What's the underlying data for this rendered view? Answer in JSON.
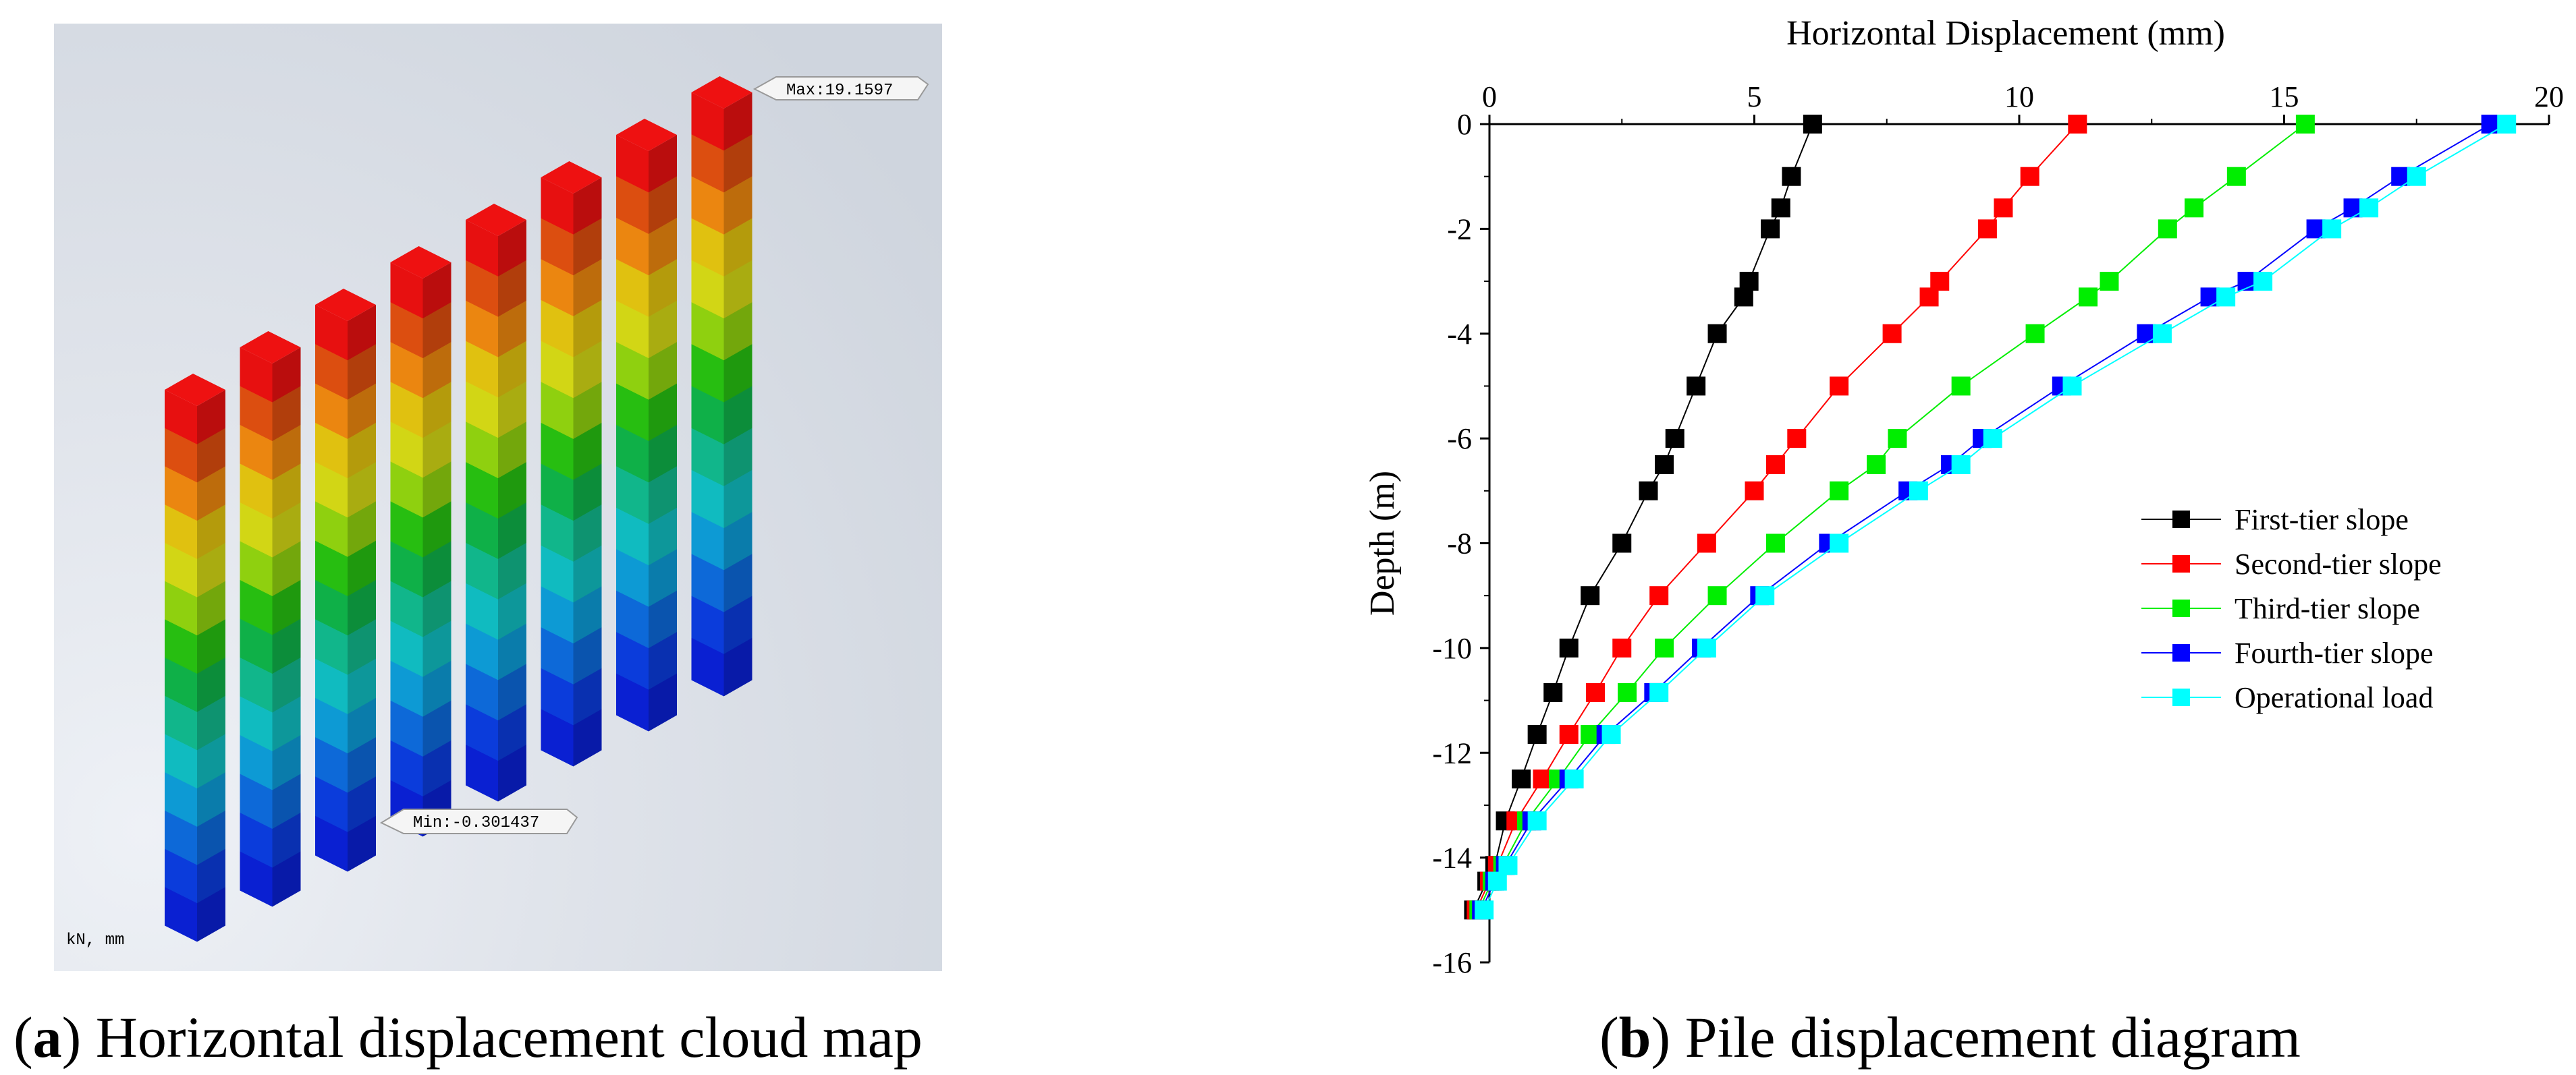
{
  "panel_a": {
    "caption_label": "a",
    "caption_text": " Horizontal displacement cloud map",
    "max_label": "Max:19.1597",
    "min_label": "Min:-0.301437",
    "units_label": "kN,   mm",
    "colors": {
      "background": "#d8dde6",
      "scale": [
        "#ee1111",
        "#e35010",
        "#f28a10",
        "#e7c710",
        "#d9dd16",
        "#93d60f",
        "#28c412",
        "#0fb54a",
        "#12bc8f",
        "#11c1c6",
        "#0d9fdb",
        "#0d6cdf",
        "#0b3ee2",
        "#0a21d8"
      ]
    }
  },
  "panel_b": {
    "caption_label": "b",
    "caption_text": " Pile displacement diagram"
  },
  "chart_data": {
    "type": "scatter",
    "title": "",
    "xlabel": "Horizontal Displacement (mm)",
    "ylabel": "Depth (m)",
    "xlim": [
      0,
      20
    ],
    "ylim": [
      -16,
      0
    ],
    "xticks": [
      0,
      5,
      10,
      15,
      20
    ],
    "yticks": [
      0,
      -2,
      -4,
      -6,
      -8,
      -10,
      -12,
      -14,
      -16
    ],
    "x_axis_position": "top",
    "legend_position": "right",
    "series": [
      {
        "name": "First-tier slope",
        "color": "#000000",
        "points": [
          [
            6.1,
            0
          ],
          [
            5.7,
            -1
          ],
          [
            5.5,
            -1.6
          ],
          [
            5.3,
            -2
          ],
          [
            4.9,
            -3
          ],
          [
            4.8,
            -3.3
          ],
          [
            4.3,
            -4
          ],
          [
            3.9,
            -5
          ],
          [
            3.5,
            -6
          ],
          [
            3.3,
            -6.5
          ],
          [
            3.0,
            -7
          ],
          [
            2.5,
            -8
          ],
          [
            1.9,
            -9
          ],
          [
            1.5,
            -10
          ],
          [
            1.2,
            -10.85
          ],
          [
            0.9,
            -11.65
          ],
          [
            0.6,
            -12.5
          ],
          [
            0.3,
            -13.3
          ],
          [
            0.1,
            -14.15
          ],
          [
            -0.05,
            -14.45
          ],
          [
            -0.3,
            -15
          ]
        ]
      },
      {
        "name": "Second-tier slope",
        "color": "#ff0000",
        "points": [
          [
            11.1,
            0
          ],
          [
            10.2,
            -1
          ],
          [
            9.7,
            -1.6
          ],
          [
            9.4,
            -2
          ],
          [
            8.5,
            -3
          ],
          [
            8.3,
            -3.3
          ],
          [
            7.6,
            -4
          ],
          [
            6.6,
            -5
          ],
          [
            5.8,
            -6
          ],
          [
            5.4,
            -6.5
          ],
          [
            5.0,
            -7
          ],
          [
            4.1,
            -8
          ],
          [
            3.2,
            -9
          ],
          [
            2.5,
            -10
          ],
          [
            2.0,
            -10.85
          ],
          [
            1.5,
            -11.65
          ],
          [
            1.0,
            -12.5
          ],
          [
            0.5,
            -13.3
          ],
          [
            0.15,
            -14.15
          ],
          [
            0.0,
            -14.45
          ],
          [
            -0.25,
            -15
          ]
        ]
      },
      {
        "name": "Third-tier slope",
        "color": "#00ee00",
        "points": [
          [
            15.4,
            0
          ],
          [
            14.1,
            -1
          ],
          [
            13.3,
            -1.6
          ],
          [
            12.8,
            -2
          ],
          [
            11.7,
            -3
          ],
          [
            11.3,
            -3.3
          ],
          [
            10.3,
            -4
          ],
          [
            8.9,
            -5
          ],
          [
            7.7,
            -6
          ],
          [
            7.3,
            -6.5
          ],
          [
            6.6,
            -7
          ],
          [
            5.4,
            -8
          ],
          [
            4.3,
            -9
          ],
          [
            3.3,
            -10
          ],
          [
            2.6,
            -10.85
          ],
          [
            1.9,
            -11.65
          ],
          [
            1.3,
            -12.5
          ],
          [
            0.7,
            -13.3
          ],
          [
            0.25,
            -14.15
          ],
          [
            0.05,
            -14.45
          ],
          [
            -0.2,
            -15
          ]
        ]
      },
      {
        "name": "Fourth-tier slope",
        "color": "#0000ff",
        "points": [
          [
            18.9,
            0
          ],
          [
            17.2,
            -1
          ],
          [
            16.3,
            -1.6
          ],
          [
            15.6,
            -2
          ],
          [
            14.3,
            -3
          ],
          [
            13.6,
            -3.3
          ],
          [
            12.4,
            -4
          ],
          [
            10.8,
            -5
          ],
          [
            9.3,
            -6
          ],
          [
            8.7,
            -6.5
          ],
          [
            7.9,
            -7
          ],
          [
            6.4,
            -8
          ],
          [
            5.1,
            -9
          ],
          [
            4.0,
            -10
          ],
          [
            3.1,
            -10.85
          ],
          [
            2.2,
            -11.65
          ],
          [
            1.5,
            -12.5
          ],
          [
            0.8,
            -13.3
          ],
          [
            0.3,
            -14.15
          ],
          [
            0.1,
            -14.45
          ],
          [
            -0.15,
            -15
          ]
        ]
      },
      {
        "name": "Operational load",
        "color": "#00ffff",
        "points": [
          [
            19.2,
            0
          ],
          [
            17.5,
            -1
          ],
          [
            16.6,
            -1.6
          ],
          [
            15.9,
            -2
          ],
          [
            14.6,
            -3
          ],
          [
            13.9,
            -3.3
          ],
          [
            12.7,
            -4
          ],
          [
            11.0,
            -5
          ],
          [
            9.5,
            -6
          ],
          [
            8.9,
            -6.5
          ],
          [
            8.1,
            -7
          ],
          [
            6.6,
            -8
          ],
          [
            5.2,
            -9
          ],
          [
            4.1,
            -10
          ],
          [
            3.2,
            -10.85
          ],
          [
            2.3,
            -11.65
          ],
          [
            1.6,
            -12.5
          ],
          [
            0.9,
            -13.3
          ],
          [
            0.35,
            -14.15
          ],
          [
            0.15,
            -14.45
          ],
          [
            -0.1,
            -15
          ]
        ]
      }
    ]
  }
}
